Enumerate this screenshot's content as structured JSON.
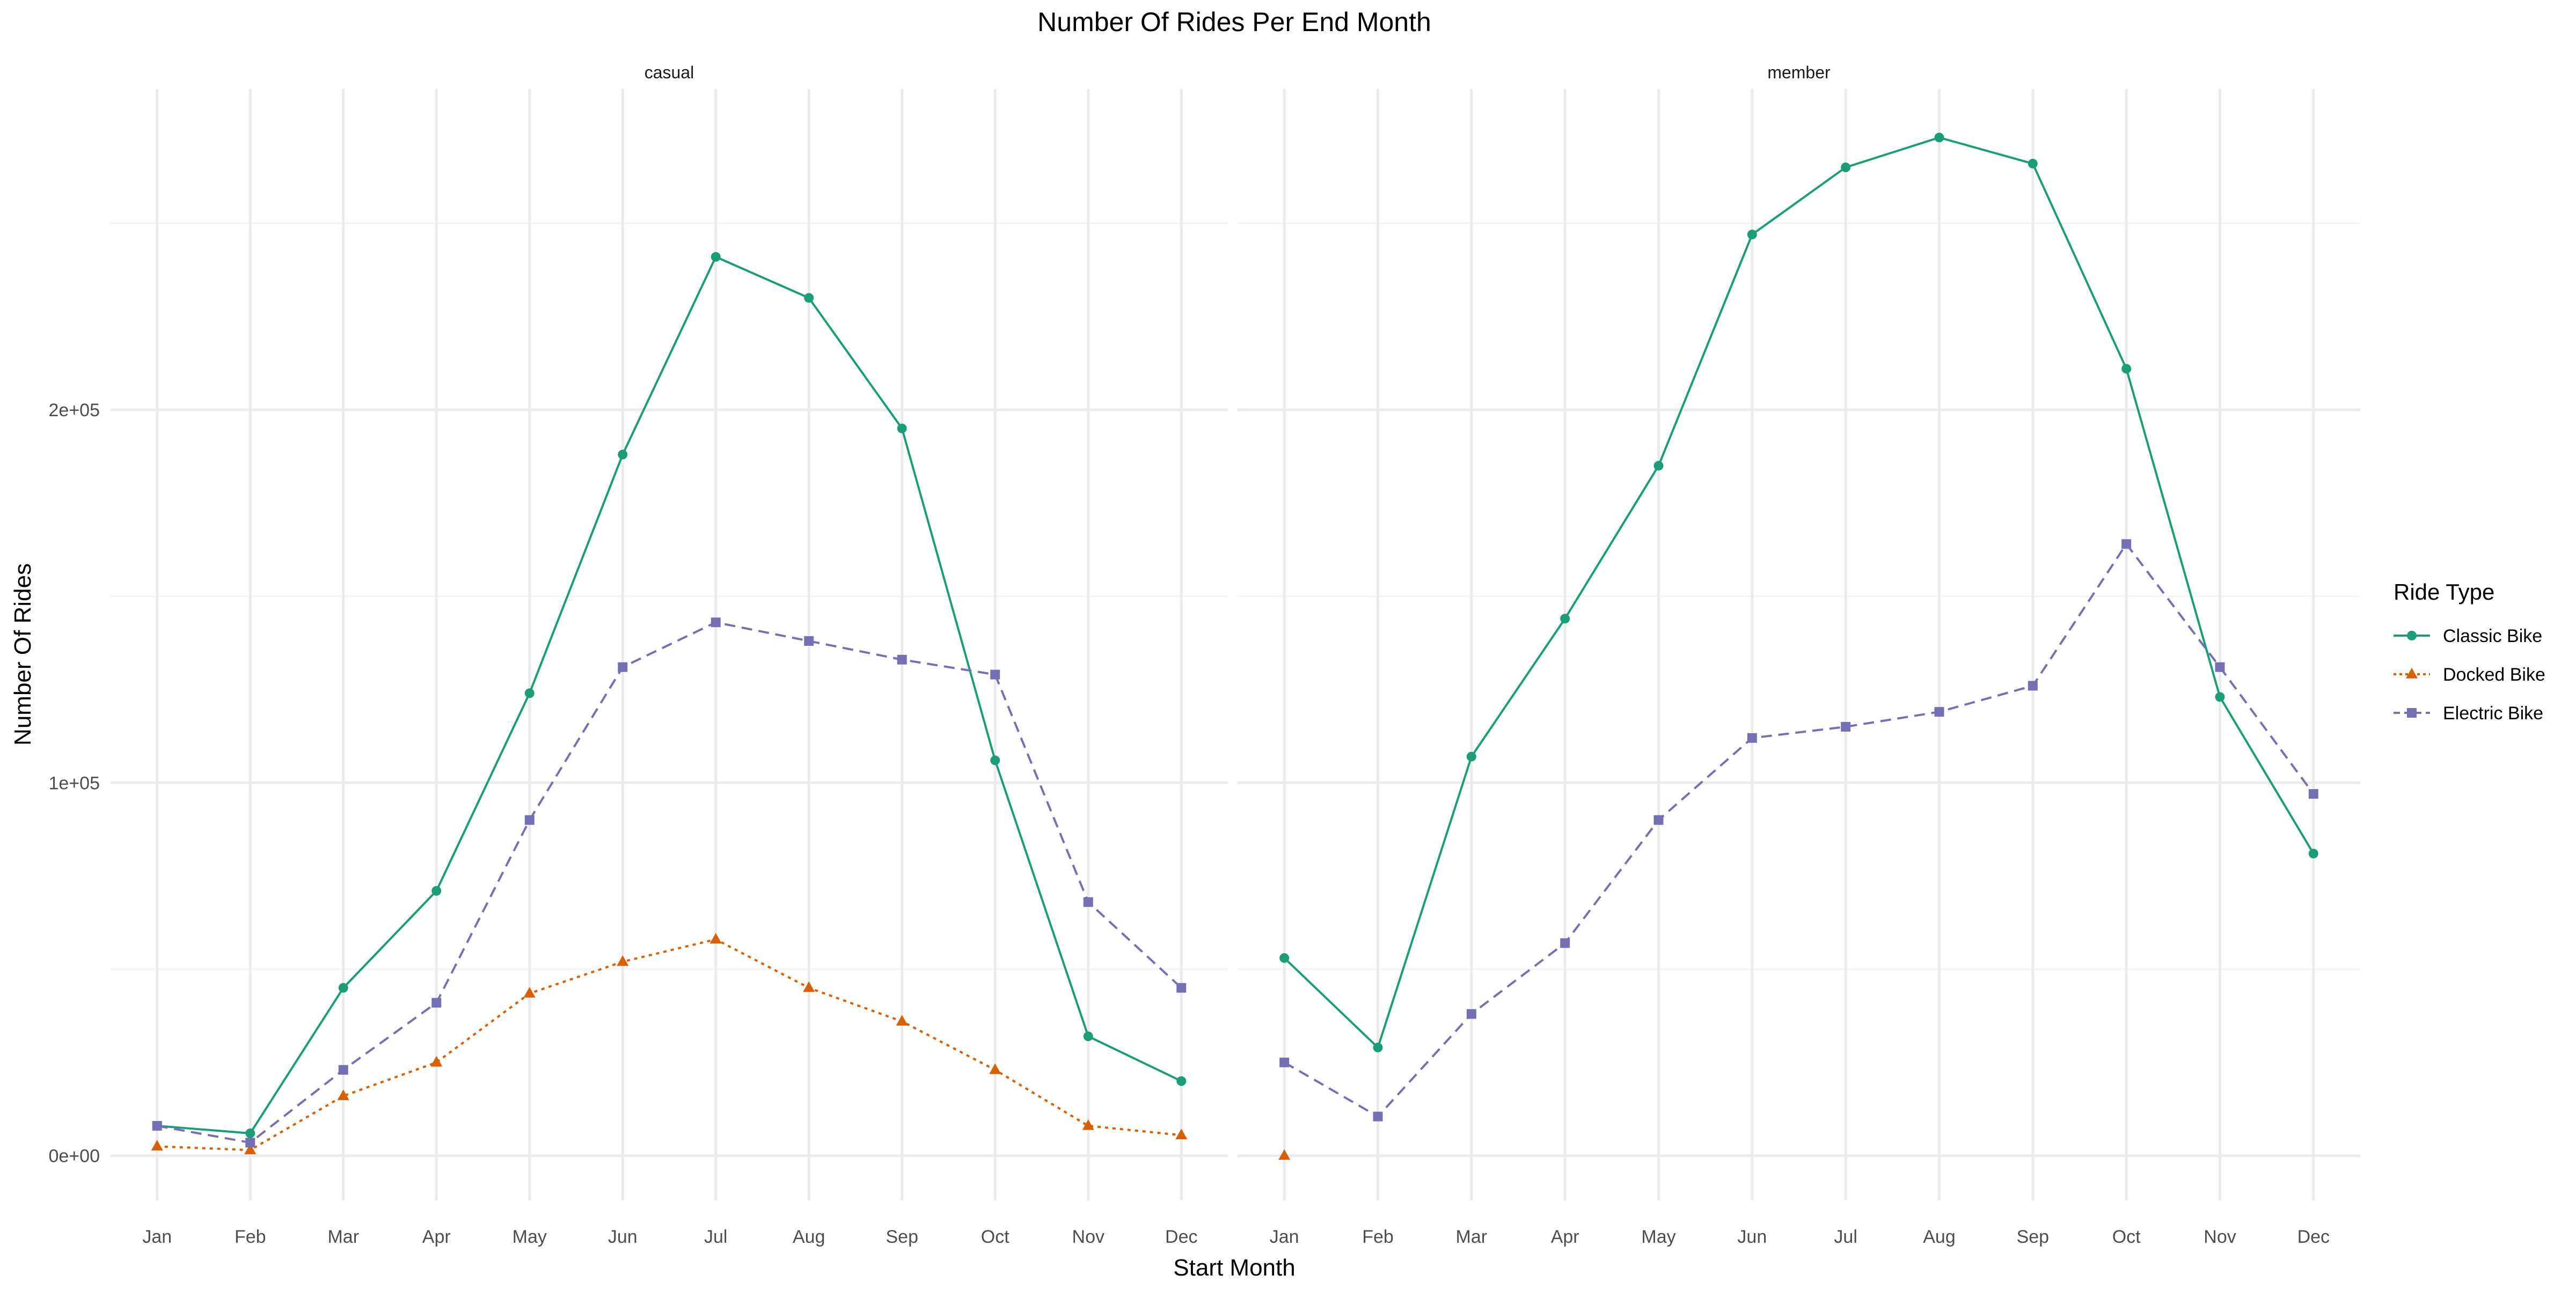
{
  "chart_data": {
    "type": "line",
    "title": "Number Of Rides Per End Month",
    "xlabel": "Start Month",
    "ylabel": "Number Of Rides",
    "categories": [
      "Jan",
      "Feb",
      "Mar",
      "Apr",
      "May",
      "Jun",
      "Jul",
      "Aug",
      "Sep",
      "Oct",
      "Nov",
      "Dec"
    ],
    "ylim": [
      -12000,
      286000
    ],
    "y_ticks": [
      {
        "value": 0,
        "label": "0e+00"
      },
      {
        "value": 100000,
        "label": "1e+05"
      },
      {
        "value": 200000,
        "label": "2e+05"
      }
    ],
    "y_minor_ticks": [
      50000,
      150000,
      250000
    ],
    "grid": true,
    "legend": {
      "title": "Ride Type",
      "position": "right",
      "entries": [
        "Classic Bike",
        "Docked Bike",
        "Electric Bike"
      ]
    },
    "series_styles": {
      "Classic Bike": {
        "color": "#1b9e77",
        "marker": "circle",
        "dash": "solid"
      },
      "Docked Bike": {
        "color": "#d95f02",
        "marker": "triangle",
        "dash": "dotted"
      },
      "Electric Bike": {
        "color": "#7570b3",
        "marker": "square",
        "dash": "dashed"
      }
    },
    "panels": [
      {
        "label": "casual",
        "series": [
          {
            "name": "Classic Bike",
            "values": [
              8000,
              6000,
              45000,
              71000,
              124000,
              188000,
              241000,
              230000,
              195000,
              106000,
              32000,
              20000
            ]
          },
          {
            "name": "Docked Bike",
            "values": [
              2500,
              1500,
              16000,
              25000,
              43500,
              52000,
              58000,
              45000,
              36000,
              23000,
              8000,
              5500
            ]
          },
          {
            "name": "Electric Bike",
            "values": [
              8000,
              3500,
              23000,
              41000,
              90000,
              131000,
              143000,
              138000,
              133000,
              129000,
              68000,
              45000
            ]
          }
        ]
      },
      {
        "label": "member",
        "series": [
          {
            "name": "Classic Bike",
            "values": [
              53000,
              29000,
              107000,
              144000,
              185000,
              247000,
              265000,
              273000,
              266000,
              211000,
              123000,
              81000
            ]
          },
          {
            "name": "Docked Bike",
            "values": [
              0,
              null,
              null,
              null,
              null,
              null,
              null,
              null,
              null,
              null,
              null,
              null
            ]
          },
          {
            "name": "Electric Bike",
            "values": [
              25000,
              10500,
              38000,
              57000,
              90000,
              112000,
              115000,
              119000,
              126000,
              164000,
              131000,
              97000
            ]
          }
        ]
      }
    ]
  }
}
